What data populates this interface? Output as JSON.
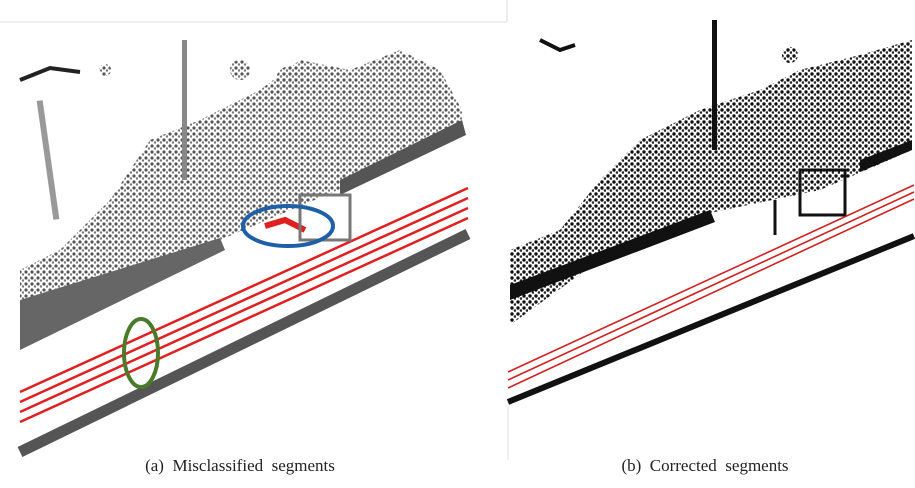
{
  "figure": {
    "panels": [
      {
        "caption": "(a)  Misclassified  segments"
      },
      {
        "caption": "(b)  Corrected  segments"
      }
    ]
  }
}
